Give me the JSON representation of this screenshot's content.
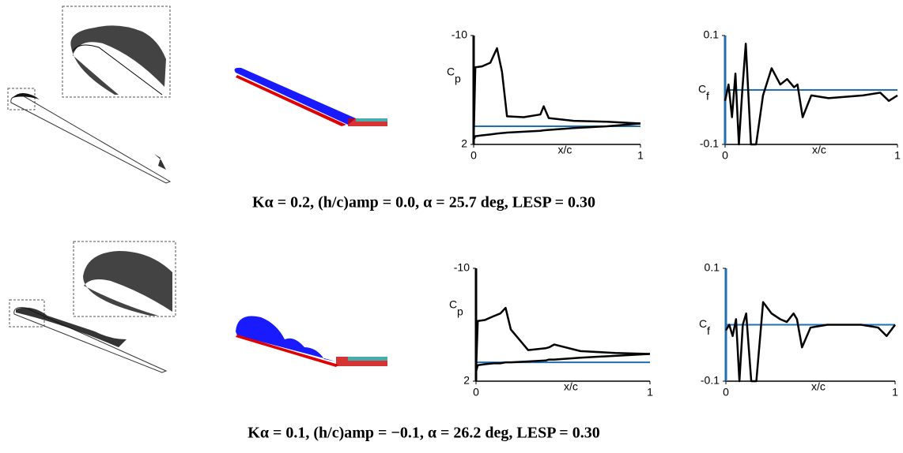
{
  "chart_data": [
    {
      "type": "line",
      "xlabel": "x/c",
      "ylabel": "C",
      "ylabel_sub": "p",
      "x": [
        0,
        0.01,
        0.05,
        0.1,
        0.14,
        0.17,
        0.2,
        0.3,
        0.4,
        0.42,
        0.45,
        0.6,
        0.8,
        1.0
      ],
      "series": [
        {
          "color": "#000000",
          "values": [
            1.5,
            -6.5,
            -6.6,
            -7.0,
            -8.6,
            -6,
            -1.1,
            -1.0,
            -1.3,
            -2.2,
            -0.9,
            -0.6,
            -0.5,
            -0.3
          ]
        },
        {
          "color": "#000000",
          "values": [
            1.5,
            1.1,
            1.0,
            0.9,
            0.8,
            0.75,
            0.7,
            0.6,
            0.5,
            0.45,
            0.4,
            0.2,
            0,
            -0.3
          ]
        }
      ],
      "xlim": [
        0,
        1
      ],
      "xticks": [
        0,
        1
      ],
      "ylim": [
        2,
        -10
      ],
      "yticks": [
        -10,
        2
      ],
      "reference_line": {
        "value": 0,
        "color": "#1f6fb4"
      },
      "yaxis_color": "#000000"
    },
    {
      "type": "line",
      "xlabel": "x/c",
      "ylabel": "C",
      "ylabel_sub": "f",
      "x": [
        0,
        0.02,
        0.04,
        0.06,
        0.08,
        0.1,
        0.12,
        0.15,
        0.18,
        0.22,
        0.27,
        0.32,
        0.36,
        0.4,
        0.42,
        0.45,
        0.5,
        0.6,
        0.8,
        0.9,
        0.95,
        1.0
      ],
      "series": [
        {
          "color": "#000000",
          "values": [
            -0.02,
            0.01,
            -0.05,
            0.03,
            -0.1,
            0.0,
            0.085,
            -0.1,
            -0.1,
            -0.01,
            0.04,
            0.01,
            0.02,
            0.005,
            0.01,
            -0.05,
            -0.01,
            -0.015,
            -0.01,
            -0.005,
            -0.02,
            -0.01
          ]
        }
      ],
      "xlim": [
        0,
        1
      ],
      "xticks": [
        0,
        1
      ],
      "ylim": [
        -0.1,
        0.1
      ],
      "yticks": [
        0.1,
        -0.1
      ],
      "reference_line": {
        "value": 0,
        "color": "#1f6fb4"
      },
      "yaxis_color": "#1f6fb4"
    },
    {
      "type": "line",
      "xlabel": "x/c",
      "ylabel": "C",
      "ylabel_sub": "p",
      "x": [
        0,
        0.01,
        0.05,
        0.1,
        0.14,
        0.17,
        0.2,
        0.3,
        0.4,
        0.42,
        0.45,
        0.6,
        0.8,
        1.0
      ],
      "series": [
        {
          "color": "#000000",
          "values": [
            1.0,
            -4.4,
            -4.5,
            -4.9,
            -5.2,
            -5.8,
            -3.5,
            -1.3,
            -1.5,
            -1.6,
            -1.9,
            -1.2,
            -1.0,
            -0.9
          ]
        },
        {
          "color": "#000000",
          "values": [
            1.0,
            0.3,
            0.2,
            0.1,
            0.1,
            0.0,
            0.0,
            -0.1,
            -0.2,
            -0.3,
            -0.3,
            -0.5,
            -0.7,
            -0.9
          ]
        }
      ],
      "xlim": [
        0,
        1
      ],
      "xticks": [
        0,
        1
      ],
      "ylim": [
        2,
        -10
      ],
      "yticks": [
        -10,
        2
      ],
      "reference_line": {
        "value": 0,
        "color": "#1f6fb4"
      },
      "yaxis_color": "#000000"
    },
    {
      "type": "line",
      "xlabel": "x/c",
      "ylabel": "C",
      "ylabel_sub": "f",
      "x": [
        0,
        0.02,
        0.04,
        0.06,
        0.08,
        0.1,
        0.12,
        0.15,
        0.18,
        0.22,
        0.27,
        0.32,
        0.36,
        0.4,
        0.42,
        0.45,
        0.5,
        0.6,
        0.8,
        0.9,
        0.95,
        1.0
      ],
      "series": [
        {
          "color": "#000000",
          "values": [
            -0.01,
            0.0,
            -0.02,
            0.01,
            -0.1,
            0.0,
            0.02,
            -0.1,
            -0.1,
            0.04,
            0.02,
            0.01,
            0.005,
            0.02,
            0.01,
            -0.04,
            -0.005,
            0.0,
            0.0,
            -0.005,
            -0.02,
            0.0
          ]
        }
      ],
      "xlim": [
        0,
        1
      ],
      "xticks": [
        0,
        1
      ],
      "ylim": [
        -0.1,
        0.1
      ],
      "yticks": [
        0.1,
        -0.1
      ],
      "reference_line": {
        "value": 0,
        "color": "#1f6fb4"
      },
      "yaxis_color": "#1f6fb4"
    }
  ],
  "captions": [
    "Kα = 0.2, (h/c)amp = 0.0,      α = 25.7 deg,     LESP = 0.30",
    "Kα = 0.1, (h/c)amp = −0.1,      α = 26.2 deg,     LESP = 0.30"
  ]
}
